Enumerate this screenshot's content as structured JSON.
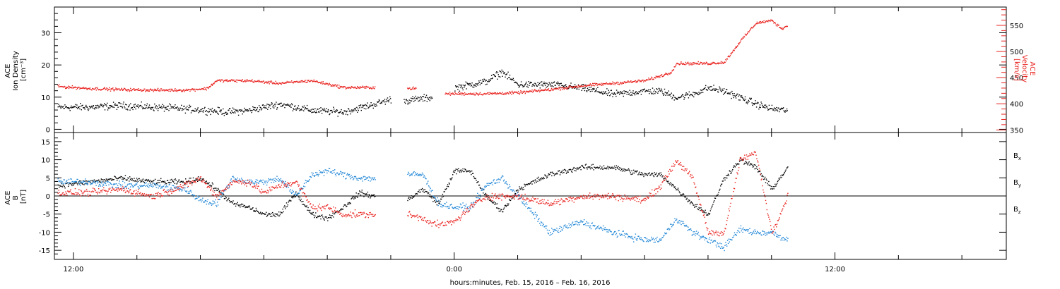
{
  "figure": {
    "xlabel": "hours:minutes, Feb. 15, 2016 – Feb. 16, 2016",
    "x_ticks": [
      "12:00",
      "0:00",
      "12:00"
    ],
    "x_range_hours": [
      -12.6,
      17.4
    ],
    "x_tick_hours": [
      -12,
      0,
      12
    ]
  },
  "chart_data": [
    {
      "type": "scatter",
      "panel": "top",
      "ylabel_left": [
        "ACE",
        "Ion Density",
        "[cm⁻³]"
      ],
      "ylabel_right": [
        "ACE",
        "Velocity",
        "[km/s]"
      ],
      "y_left_ticks": [
        "0",
        "10",
        "20",
        "30"
      ],
      "y_left_tick_values": [
        0,
        10,
        20,
        30
      ],
      "ylim_left": [
        -1,
        38
      ],
      "y_right_ticks": [
        "350",
        "400",
        "450",
        "500",
        "550"
      ],
      "y_right_tick_values": [
        350,
        400,
        450,
        500,
        550
      ],
      "ylim_right": [
        345,
        585
      ],
      "colors": {
        "density": "#000000",
        "velocity": "#e8221e"
      },
      "series": [
        {
          "key": "density",
          "axis": "left",
          "spread": 1.2,
          "x": [
            -12.5,
            -11.5,
            -10.5,
            -9.5,
            -8.5,
            -7.7,
            -7.2,
            -6.5,
            -5.5,
            -4.5,
            -3.5,
            -2.5,
            -2.0,
            -1.5,
            -1.2,
            -0.7,
            -0.3,
            0.0,
            0.5,
            1.0,
            1.5,
            2.0,
            3.0,
            4.0,
            5.0,
            6.0,
            6.5,
            7.0,
            7.5,
            8.0,
            8.5,
            9.0,
            9.5,
            10.0,
            10.5
          ],
          "values": [
            7,
            7,
            7.5,
            7,
            6.5,
            6,
            5.5,
            6,
            8,
            6,
            5.5,
            8,
            9.5,
            9,
            9.5,
            10,
            null,
            13,
            14,
            15,
            18,
            14,
            14,
            13,
            11,
            12,
            12,
            10,
            11,
            13,
            12,
            10,
            8,
            6.5,
            6
          ]
        },
        {
          "key": "velocity",
          "axis": "right",
          "spread": 3,
          "x": [
            -12.5,
            -11.5,
            -10.5,
            -9.5,
            -8.5,
            -7.8,
            -7.5,
            -6.5,
            -5.5,
            -4.5,
            -3.5,
            -3.0,
            -2.5,
            -2.0,
            -1.5,
            -1.2,
            -0.8,
            -0.3,
            0.0,
            1.0,
            2.0,
            3.0,
            4.0,
            5.0,
            6.0,
            6.8,
            7.0,
            8.0,
            8.5,
            9.0,
            9.5,
            10.0,
            10.3,
            10.5
          ],
          "values": [
            434,
            430,
            428,
            427,
            427,
            430,
            445,
            445,
            440,
            445,
            432,
            432,
            432,
            null,
            430,
            430,
            null,
            420,
            420,
            420,
            422,
            428,
            435,
            440,
            445,
            460,
            478,
            478,
            480,
            520,
            555,
            560,
            545,
            550
          ]
        }
      ],
      "gaps_hours": [
        [
          -2.0,
          -1.6
        ],
        [
          -0.7,
          -0.55
        ]
      ]
    },
    {
      "type": "scatter",
      "panel": "bottom",
      "ylabel_left": [
        "ACE",
        "B",
        "[nT]"
      ],
      "y_ticks": [
        "15",
        "10",
        "5",
        "0",
        "-5",
        "-10",
        "-15"
      ],
      "y_tick_values": [
        15,
        10,
        5,
        0,
        -5,
        -10,
        -15
      ],
      "ylim": [
        -17.5,
        17.5
      ],
      "zero_line": true,
      "legend": [
        "Bx",
        "By",
        "Bz"
      ],
      "legend_placement": "right",
      "colors": {
        "Bx": "#000000",
        "By": "#1f86d6",
        "Bz": "#e8221e"
      },
      "series": [
        {
          "key": "Bx",
          "name": "Bx",
          "spread": 0.8,
          "x": [
            -12.5,
            -11.5,
            -10.5,
            -9.5,
            -8.5,
            -8.0,
            -7.5,
            -7.0,
            -6.5,
            -6.0,
            -5.5,
            -5.0,
            -4.5,
            -4.0,
            -3.5,
            -3.0,
            -2.5,
            -2.0,
            -1.5,
            -1.0,
            -0.5,
            0.0,
            0.5,
            1.0,
            1.5,
            2.0,
            3.0,
            4.0,
            5.0,
            6.0,
            6.5,
            7.0,
            7.5,
            8.0,
            8.5,
            9.0,
            9.5,
            10.0,
            10.5
          ],
          "values": [
            3,
            4,
            5,
            4,
            4,
            5,
            2,
            -2,
            -3,
            -5,
            -5,
            1,
            -5,
            -6,
            -3,
            1,
            0,
            null,
            -1,
            2,
            -2,
            7,
            7,
            0,
            -4,
            2,
            6,
            8,
            8,
            6,
            6,
            2,
            -2,
            -5,
            5,
            10,
            8,
            2,
            8
          ]
        },
        {
          "key": "By",
          "name": "By",
          "spread": 1.0,
          "x": [
            -12.5,
            -11.5,
            -10.5,
            -9.5,
            -8.5,
            -8.0,
            -7.5,
            -7.0,
            -6.5,
            -6.0,
            -5.5,
            -5.0,
            -4.5,
            -4.0,
            -3.5,
            -3.0,
            -2.5,
            -2.0,
            -1.5,
            -1.0,
            -0.5,
            0.0,
            0.5,
            1.0,
            1.5,
            2.0,
            3.0,
            4.0,
            5.0,
            6.0,
            6.5,
            7.0,
            7.5,
            8.0,
            8.5,
            9.0,
            9.5,
            10.0,
            10.5
          ],
          "values": [
            4,
            4,
            3,
            3,
            2,
            -1,
            -2,
            5,
            4,
            4,
            5,
            0,
            6,
            7,
            6,
            5,
            5,
            null,
            6,
            6,
            -2,
            -3,
            -3,
            3,
            5,
            0,
            -10,
            -7,
            -10,
            -12,
            -12,
            -6,
            -10,
            -12,
            -14,
            -9,
            -10,
            -10,
            -12
          ]
        },
        {
          "key": "Bz",
          "name": "Bz",
          "spread": 1.0,
          "x": [
            -12.5,
            -11.5,
            -10.5,
            -9.5,
            -8.5,
            -8.0,
            -7.5,
            -7.0,
            -6.5,
            -6.0,
            -5.5,
            -5.0,
            -4.5,
            -4.0,
            -3.5,
            -3.0,
            -2.5,
            -2.0,
            -1.5,
            -1.0,
            -0.5,
            0.0,
            0.5,
            1.0,
            1.5,
            2.0,
            3.0,
            4.0,
            5.0,
            6.0,
            6.5,
            7.0,
            7.5,
            8.0,
            8.5,
            9.0,
            9.5,
            10.0,
            10.5
          ],
          "values": [
            1,
            1,
            2,
            0,
            3,
            5,
            0,
            4,
            4,
            1,
            3,
            4,
            -3,
            -3,
            -5,
            -5,
            -5,
            null,
            -5,
            -6,
            -8,
            -7,
            -3,
            0,
            0,
            0,
            -2,
            0,
            0,
            -1,
            3,
            10,
            5,
            -10,
            -10,
            10,
            12,
            -10,
            0
          ]
        }
      ],
      "gaps_hours": [
        [
          -2.0,
          -1.6
        ]
      ]
    }
  ]
}
